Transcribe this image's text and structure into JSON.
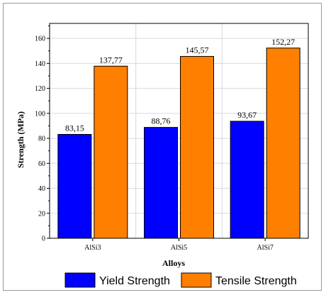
{
  "chart_data": {
    "type": "bar",
    "title": "",
    "xlabel": "Alloys",
    "ylabel": "Strength (MPa)",
    "categories": [
      "AlSi3",
      "AlSi5",
      "AlSi7"
    ],
    "series": [
      {
        "name": "Yield Strength",
        "color": "#0000ff",
        "values": [
          83.15,
          88.76,
          93.67
        ],
        "labels": [
          "83,15",
          "88,76",
          "93,67"
        ]
      },
      {
        "name": "Tensile Strength",
        "color": "#ff7f00",
        "values": [
          137.77,
          145.57,
          152.27
        ],
        "labels": [
          "137,77",
          "145,57",
          "152,27"
        ]
      }
    ],
    "ylim": [
      0,
      172
    ],
    "yticks": [
      0,
      20,
      40,
      60,
      80,
      100,
      120,
      140,
      160
    ],
    "grid": true,
    "legend_position": "bottom"
  }
}
